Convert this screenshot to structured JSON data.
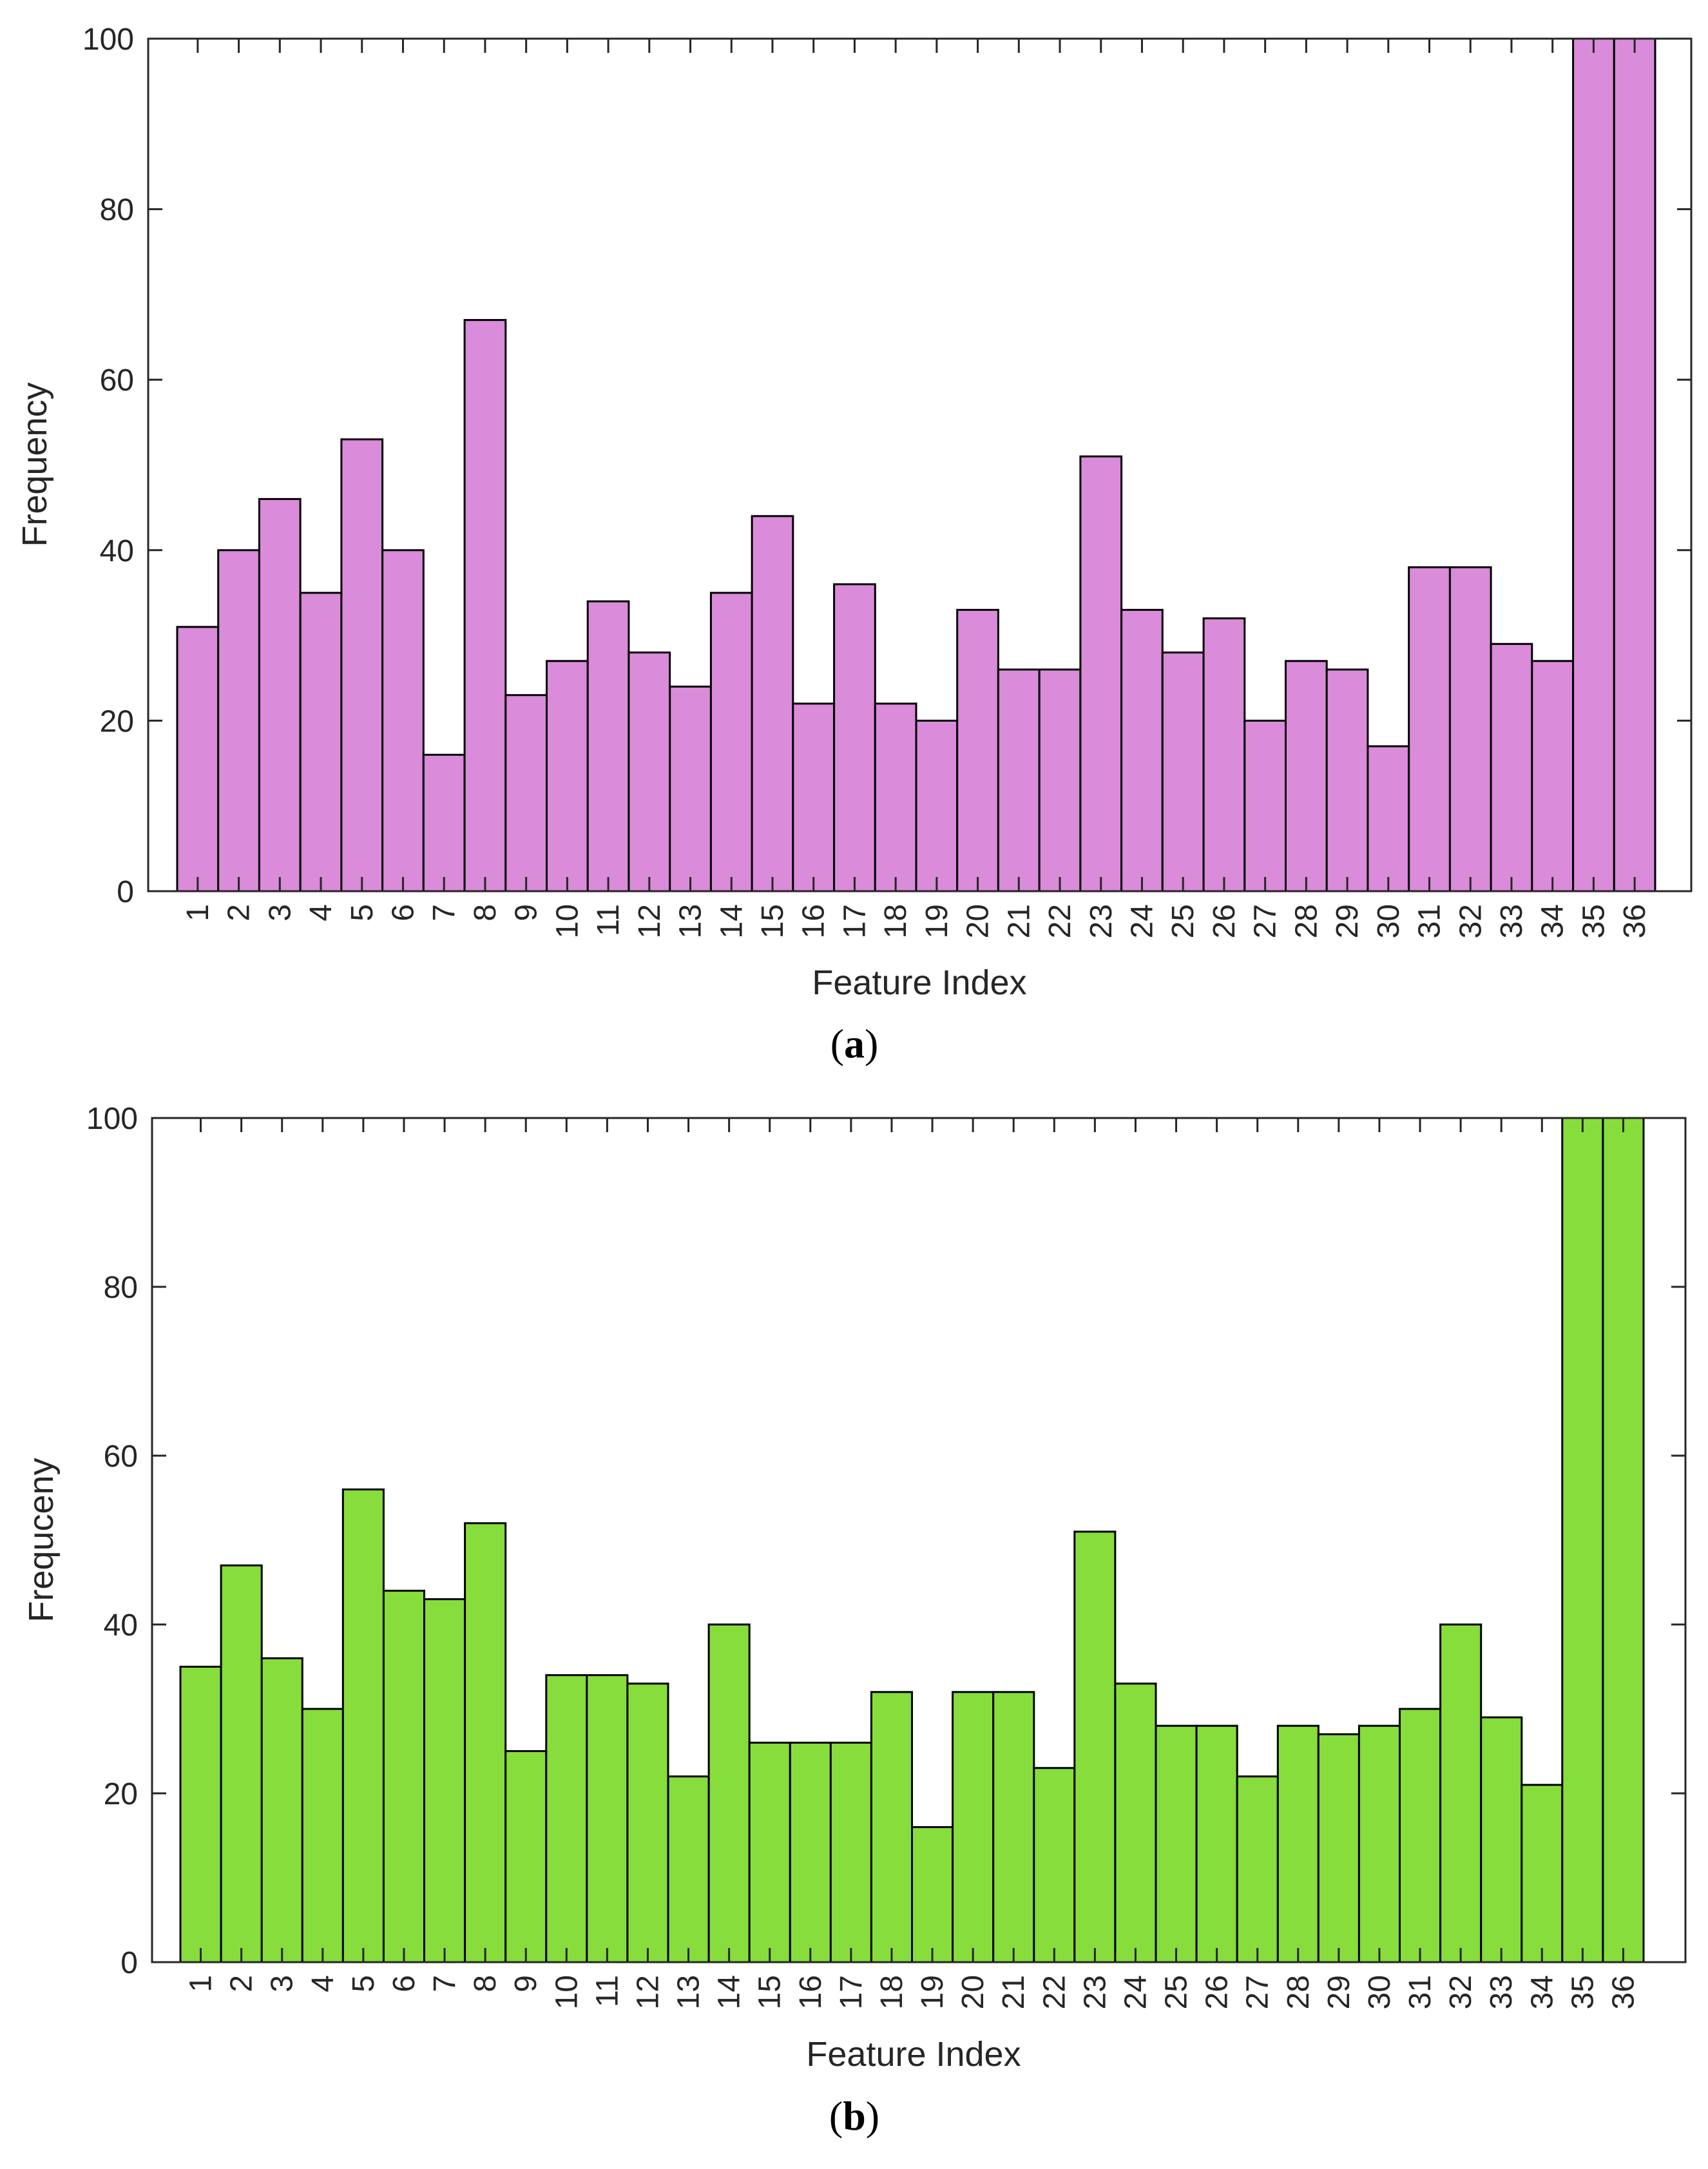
{
  "chart_data": [
    {
      "type": "bar",
      "panel_label": "a",
      "xlabel": "Feature Index",
      "ylabel": "Frequency",
      "ylim": [
        0,
        100
      ],
      "yticks": [
        0,
        20,
        40,
        60,
        80,
        100
      ],
      "categories": [
        "1",
        "2",
        "3",
        "4",
        "5",
        "6",
        "7",
        "8",
        "9",
        "10",
        "11",
        "12",
        "13",
        "14",
        "15",
        "16",
        "17",
        "18",
        "19",
        "20",
        "21",
        "22",
        "23",
        "24",
        "25",
        "26",
        "27",
        "28",
        "29",
        "30",
        "31",
        "32",
        "33",
        "34",
        "35",
        "36"
      ],
      "values": [
        31,
        40,
        46,
        35,
        53,
        40,
        16,
        67,
        23,
        27,
        34,
        28,
        24,
        35,
        44,
        22,
        36,
        22,
        20,
        33,
        26,
        26,
        51,
        33,
        28,
        32,
        20,
        27,
        26,
        17,
        38,
        38,
        29,
        27,
        100,
        100
      ],
      "bar_color": "#da8bd9",
      "edge_color": "#000000"
    },
    {
      "type": "bar",
      "panel_label": "b",
      "xlabel": "Feature Index",
      "ylabel": "Frequceny",
      "ylim": [
        0,
        100
      ],
      "yticks": [
        0,
        20,
        40,
        60,
        80,
        100
      ],
      "categories": [
        "1",
        "2",
        "3",
        "4",
        "5",
        "6",
        "7",
        "8",
        "9",
        "10",
        "11",
        "12",
        "13",
        "14",
        "15",
        "16",
        "17",
        "18",
        "19",
        "20",
        "21",
        "22",
        "23",
        "24",
        "25",
        "26",
        "27",
        "28",
        "29",
        "30",
        "31",
        "32",
        "33",
        "34",
        "35",
        "36"
      ],
      "values": [
        35,
        47,
        36,
        30,
        56,
        44,
        43,
        52,
        25,
        34,
        34,
        33,
        22,
        40,
        26,
        26,
        26,
        32,
        16,
        32,
        32,
        23,
        51,
        33,
        28,
        28,
        22,
        28,
        27,
        28,
        30,
        40,
        29,
        21,
        100,
        100
      ],
      "bar_color": "#86dd3c",
      "edge_color": "#000000"
    }
  ]
}
